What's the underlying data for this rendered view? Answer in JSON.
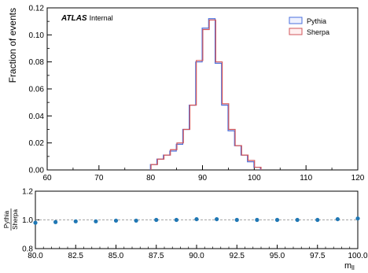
{
  "chart_data": [
    {
      "type": "line",
      "panel": "main",
      "drawstyle": "step-histogram",
      "experiment_label": "ATLAS",
      "experiment_sublabel": "Internal",
      "xlabel": "",
      "ylabel": "Fraction of events",
      "xlim": [
        60,
        120
      ],
      "ylim": [
        0,
        0.12
      ],
      "x_ticks": [
        "60",
        "70",
        "80",
        "90",
        "100",
        "110",
        "120"
      ],
      "y_ticks": [
        "0.00",
        "0.02",
        "0.04",
        "0.06",
        "0.08",
        "0.10",
        "0.12"
      ],
      "bin_edges": [
        80,
        81.25,
        82.5,
        83.75,
        85,
        86.25,
        87.5,
        88.75,
        90,
        91.25,
        92.5,
        93.75,
        95,
        96.25,
        97.5,
        98.75,
        100
      ],
      "legend_position": "top-right",
      "series": [
        {
          "name": "Pythia",
          "color": "#4a6fdc",
          "values": [
            0.004,
            0.008,
            0.011,
            0.014,
            0.019,
            0.03,
            0.048,
            0.08,
            0.105,
            0.112,
            0.079,
            0.048,
            0.029,
            0.018,
            0.011,
            0.006,
            0.002
          ]
        },
        {
          "name": "Sherpa",
          "color": "#d2555a",
          "values": [
            0.004,
            0.008,
            0.011,
            0.015,
            0.02,
            0.03,
            0.048,
            0.081,
            0.104,
            0.111,
            0.08,
            0.049,
            0.03,
            0.018,
            0.011,
            0.007,
            0.002
          ]
        }
      ]
    },
    {
      "type": "scatter",
      "panel": "ratio",
      "ylabel_num": "Pythia",
      "ylabel_den": "Sherpa",
      "xlabel": "m",
      "xlabel_sub": "ll",
      "xlim": [
        80,
        100
      ],
      "ylim": [
        0.8,
        1.2
      ],
      "x_ticks": [
        "80.0",
        "82.5",
        "85.0",
        "87.5",
        "90.0",
        "92.5",
        "95.0",
        "97.5",
        "100.0"
      ],
      "y_ticks": [
        "0.8",
        "1.0",
        "1.2"
      ],
      "reference_line": 1.0,
      "series": [
        {
          "name": "",
          "color": "#1f77b4",
          "x": [
            80.0,
            81.25,
            82.5,
            83.75,
            85.0,
            86.25,
            87.5,
            88.75,
            90.0,
            91.25,
            92.5,
            93.75,
            95.0,
            96.25,
            97.5,
            98.75,
            100.0
          ],
          "y": [
            0.98,
            0.985,
            0.99,
            0.99,
            0.995,
            0.995,
            1.0,
            1.0,
            1.005,
            1.005,
            1.0,
            1.0,
            1.0,
            1.0,
            1.0,
            1.005,
            1.01
          ]
        }
      ]
    }
  ]
}
